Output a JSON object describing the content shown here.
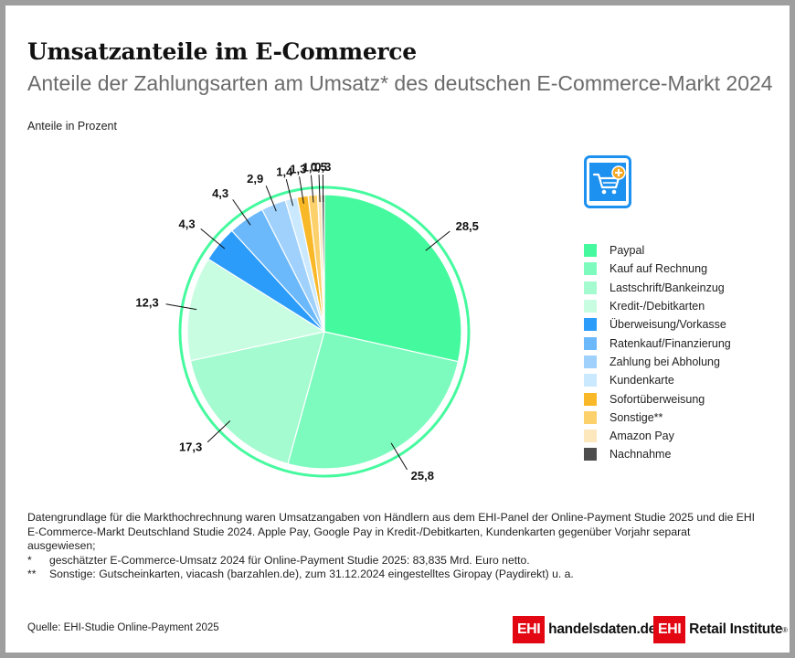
{
  "title": "Umsatzanteile im E-Commerce",
  "subtitle": "Anteile der Zahlungsarten am Umsatz* des deutschen E-Commerce-Markt 2024",
  "unit_label": "Anteile in Prozent",
  "chart_data": {
    "type": "pie",
    "title": "Umsatzanteile im E-Commerce",
    "subtitle": "Anteile der Zahlungsarten am Umsatz* des deutschen E-Commerce-Markt 2024",
    "unit": "Anteile in Prozent",
    "legend_position": "right",
    "start": "top, clockwise",
    "slices": [
      {
        "name": "Paypal",
        "value": 28.5,
        "label": "28,5",
        "color": "#45fa9e"
      },
      {
        "name": "Kauf auf Rechnung",
        "value": 25.8,
        "label": "25,8",
        "color": "#7dfbbe"
      },
      {
        "name": "Lastschrift/Bankeinzug",
        "value": 17.3,
        "label": "17,3",
        "color": "#a4fbd0"
      },
      {
        "name": "Kredit-/Debitkarten",
        "value": 12.3,
        "label": "12,3",
        "color": "#c8fde2"
      },
      {
        "name": "Überweisung/Vorkasse",
        "value": 4.3,
        "label": "4,3",
        "color": "#2c9cfb"
      },
      {
        "name": "Ratenkauf/Finanzierung",
        "value": 4.3,
        "label": "4,3",
        "color": "#6bb8fb"
      },
      {
        "name": "Zahlung bei Abholung",
        "value": 2.9,
        "label": "2,9",
        "color": "#9fd1fc"
      },
      {
        "name": "Kundenkarte",
        "value": 1.4,
        "label": "1,4",
        "color": "#cae8fe"
      },
      {
        "name": "Sofortüberweisung",
        "value": 1.3,
        "label": "1,3",
        "color": "#f9b827"
      },
      {
        "name": "Sonstige**",
        "value": 1.1,
        "label": "1,1",
        "color": "#fcd06a"
      },
      {
        "name": "Amazon Pay",
        "value": 0.5,
        "label": "0,5",
        "color": "#fde8bd"
      },
      {
        "name": "Nachnahme",
        "value": 0.3,
        "label": "0,3",
        "color": "#4d4d4d"
      }
    ]
  },
  "colors": {
    "ring": "#45fa9e",
    "icon_blue": "#1d91f0",
    "icon_orange": "#f7a823",
    "brand_red": "#e30613"
  },
  "icon": "shopping-cart-add-icon",
  "notes": {
    "main": "Datengrundlage für die Markthochrechnung waren Umsatzangaben von Händlern aus dem EHI-Panel der Online-Payment Studie 2025 und die EHI E-Commerce-Markt Deutschland Studie 2024. Apple Pay, Google Pay in Kredit-/Debitkarten, Kundenkarten gegenüber Vorjahr separat ausgewiesen;",
    "fn1_mark": "*",
    "fn1": "geschätzter E-Commerce-Umsatz 2024 für Online-Payment Studie 2025: 83,835 Mrd. Euro netto.",
    "fn2_mark": "**",
    "fn2": "Sonstige: Gutscheinkarten, viacash (barzahlen.de), zum 31.12.2024 eingestelltes Giropay (Paydirekt) u. a."
  },
  "source": "Quelle: EHI-Studie Online-Payment 2025",
  "logos": {
    "logo1_box": "EHI",
    "logo1_text": "handelsdaten.de",
    "logo2_box": "EHI",
    "logo2_text": "Retail Institute",
    "logo2_mark": "®"
  }
}
